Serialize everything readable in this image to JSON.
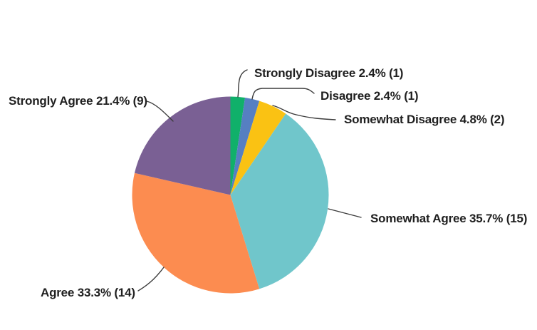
{
  "chart_data": {
    "type": "pie",
    "background_color": "#ffffff",
    "legend": false,
    "label_placement": "outside-leader-lines",
    "direction": "clockwise",
    "start_angle_deg": 0,
    "text_color": "#1f1f1f",
    "leader_line_color": "#3c3c3c",
    "slices": [
      {
        "label": "Strongly Disagree",
        "percent": 2.4,
        "count": 1,
        "color": "#10b06a",
        "display": "Strongly Disagree 2.4% (1)"
      },
      {
        "label": "Disagree",
        "percent": 2.4,
        "count": 1,
        "color": "#567fc2",
        "display": "Disagree 2.4% (1)"
      },
      {
        "label": "Somewhat Disagree",
        "percent": 4.8,
        "count": 2,
        "color": "#fac213",
        "display": "Somewhat Disagree 4.8% (2)"
      },
      {
        "label": "Somewhat Agree",
        "percent": 35.7,
        "count": 15,
        "color": "#70c6cb",
        "display": "Somewhat Agree 35.7% (15)"
      },
      {
        "label": "Agree",
        "percent": 33.3,
        "count": 14,
        "color": "#fc8c50",
        "display": "Agree 33.3% (14)"
      },
      {
        "label": "Strongly Agree",
        "percent": 21.4,
        "count": 9,
        "color": "#7a6094",
        "display": "Strongly Agree 21.4% (9)"
      }
    ]
  }
}
